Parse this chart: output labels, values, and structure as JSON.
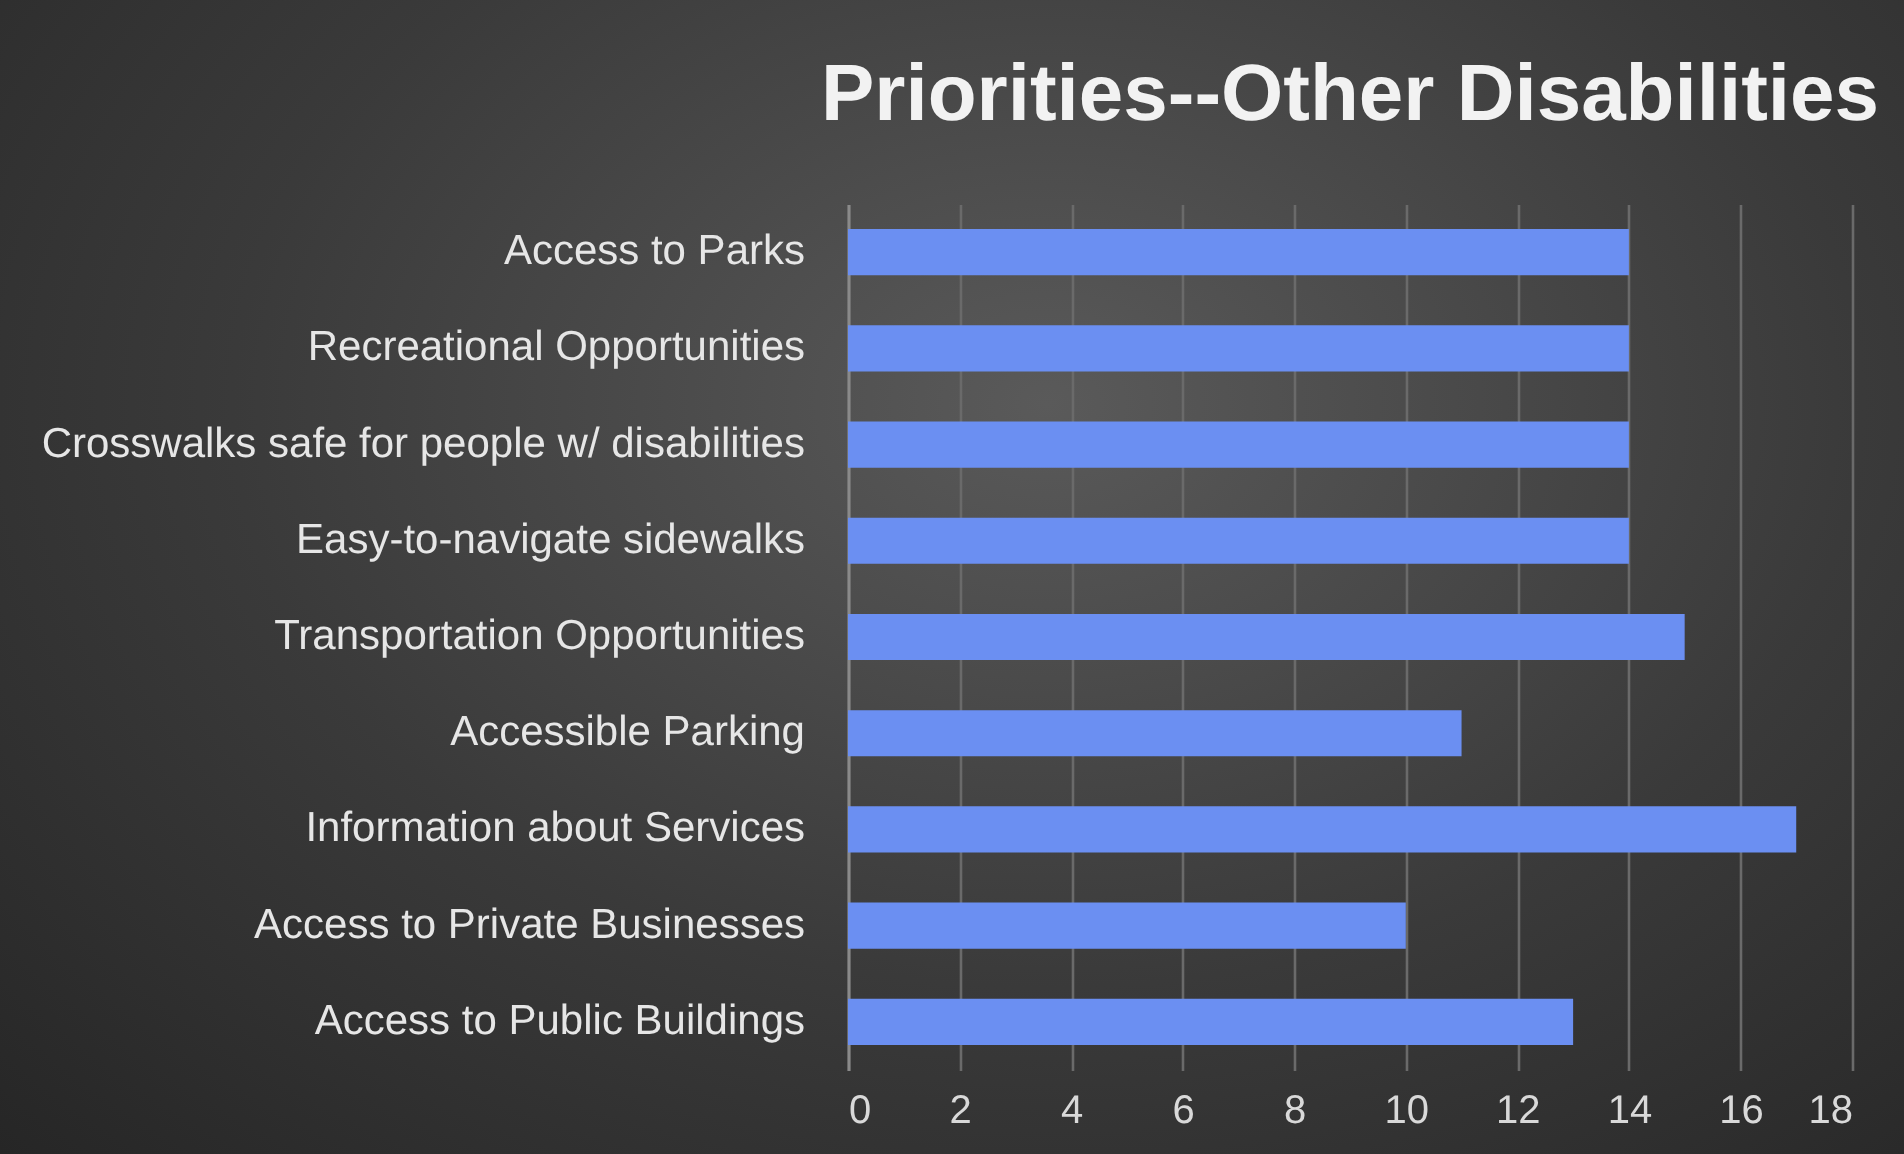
{
  "chart_data": {
    "type": "bar",
    "title": "Priorities--Other Disabilities",
    "orientation": "horizontal",
    "categories": [
      "Access to Parks",
      "Recreational Opportunities",
      "Crosswalks safe for people w/ disabilities",
      "Easy-to-navigate sidewalks",
      "Transportation Opportunities",
      "Accessible Parking",
      "Information about Services",
      "Access to Private Businesses",
      "Access to Public Buildings"
    ],
    "values": [
      14,
      14,
      14,
      14,
      15,
      11,
      17,
      10,
      13
    ],
    "color": "#6b8ff2",
    "xlim": [
      0,
      18
    ],
    "xticks": [
      0,
      2,
      4,
      6,
      8,
      10,
      12,
      14,
      16,
      18
    ],
    "grid": "x"
  }
}
